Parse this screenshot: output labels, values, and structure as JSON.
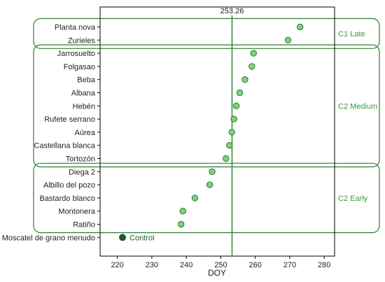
{
  "chart_data": {
    "type": "scatter",
    "xlabel": "DOY",
    "xlim": [
      215,
      283
    ],
    "xticks": [
      220,
      230,
      240,
      250,
      260,
      270,
      280
    ],
    "reference_line": {
      "value": 253.26,
      "label": "253.26"
    },
    "categories": [
      "Planta nova",
      "Zurieles",
      "Jarrosuelto",
      "Folgasao",
      "Beba",
      "Albana",
      "Hebén",
      "Rufete serrano",
      "Aúrea",
      "Castellana blanca",
      "Tortozón",
      "Diega 2",
      "Albillo del pozo",
      "Bastardo blanco",
      "Montonera",
      "Ratiño",
      "Moscatel de grano menudo"
    ],
    "values": [
      273,
      269.5,
      259.5,
      259,
      257,
      255.5,
      254.5,
      253.8,
      253.2,
      252.5,
      251.5,
      247.5,
      246.8,
      242.5,
      239,
      238.5,
      221.5
    ],
    "groups": [
      {
        "name": "C1 Late",
        "from": 0,
        "to": 1
      },
      {
        "name": "C2 Medium",
        "from": 2,
        "to": 10
      },
      {
        "name": "C2 Early",
        "from": 11,
        "to": 15
      }
    ],
    "control": {
      "index": 16,
      "label": "Control"
    },
    "colors": {
      "point_fill": "#7fd17f",
      "point_stroke": "#2a7a2a",
      "control_fill": "#1d5a2c",
      "group_border": "#2e7d32",
      "group_label": "#3a9a3a",
      "reference_line": "#2e8b3a"
    }
  }
}
